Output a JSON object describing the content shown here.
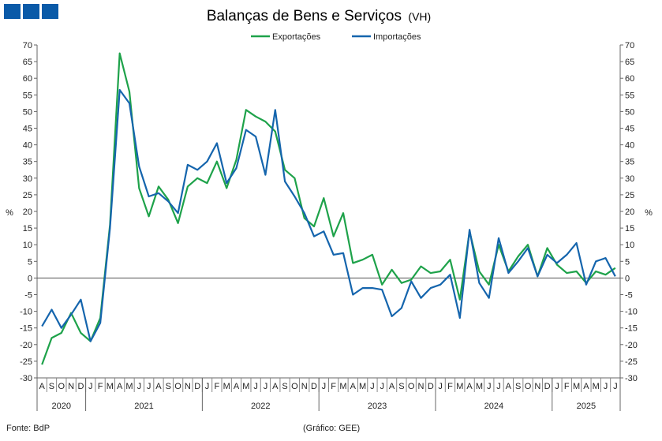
{
  "header": {
    "logo_color": "#0a5aa8"
  },
  "chart_data": {
    "type": "line",
    "title": "Balanças de Bens e Serviços",
    "title_suffix": "(VH)",
    "ylabel_left": "%",
    "ylabel_right": "%",
    "ylim": [
      -30,
      70
    ],
    "yticks": [
      70,
      65,
      60,
      55,
      50,
      45,
      40,
      35,
      30,
      25,
      20,
      15,
      10,
      5,
      0,
      -5,
      -10,
      -15,
      -20,
      -25,
      -30
    ],
    "legend_position": "top-center",
    "grid": false,
    "months": [
      "A",
      "S",
      "O",
      "N",
      "D",
      "J",
      "F",
      "M",
      "A",
      "M",
      "J",
      "J",
      "A",
      "S",
      "O",
      "N",
      "D",
      "J",
      "F",
      "M",
      "A",
      "M",
      "J",
      "J",
      "A",
      "S",
      "O",
      "N",
      "D",
      "J",
      "F",
      "M",
      "A",
      "M",
      "J",
      "J",
      "A",
      "S",
      "O",
      "N",
      "D",
      "J",
      "F",
      "M",
      "A",
      "M",
      "J",
      "J",
      "A",
      "S",
      "O",
      "N",
      "D",
      "J",
      "F",
      "M",
      "A",
      "M",
      "J",
      "J"
    ],
    "years": [
      "2020",
      "2021",
      "2022",
      "2023",
      "2024",
      "2025"
    ],
    "series": [
      {
        "name": "Exportações",
        "color": "#1ea24a",
        "values": [
          -26,
          -18,
          -16.5,
          -10.5,
          -16.5,
          -19,
          -12,
          16,
          67.5,
          56,
          27,
          18.5,
          27.5,
          23.5,
          16.5,
          27.5,
          30,
          28.5,
          35,
          27,
          35.5,
          50.5,
          48.5,
          47,
          44,
          32.5,
          30,
          18,
          15.5,
          24,
          12.5,
          19.5,
          4.5,
          5.5,
          7,
          -2,
          2.5,
          -1.5,
          -0.5,
          3.5,
          1.5,
          2,
          5.5,
          -6.5,
          14,
          2,
          -2,
          10,
          2,
          6.5,
          10,
          0.5,
          9,
          4,
          1.5,
          2,
          -1.5,
          2,
          1,
          3
        ]
      },
      {
        "name": "Importações",
        "color": "#1565ad",
        "values": [
          -14.5,
          -9.5,
          -15,
          -11,
          -6.5,
          -19,
          -13.5,
          15,
          56.5,
          52.5,
          33.5,
          24.5,
          25.5,
          23,
          19.5,
          34,
          32.5,
          35,
          40.5,
          28.5,
          33,
          44.5,
          42.5,
          31,
          50.5,
          29,
          24.5,
          19.5,
          12.5,
          14,
          7,
          7.5,
          -5,
          -3,
          -3,
          -3.5,
          -11.5,
          -9,
          -1,
          -6,
          -3,
          -2,
          1,
          -12,
          14.5,
          -1.5,
          -6,
          12,
          1.5,
          5,
          9,
          0.5,
          7,
          4.5,
          7,
          10.5,
          -2,
          5,
          6,
          0.5
        ]
      }
    ]
  },
  "footer": {
    "source": "Fonte: BdP",
    "credit": "(Gráfico: GEE)"
  }
}
